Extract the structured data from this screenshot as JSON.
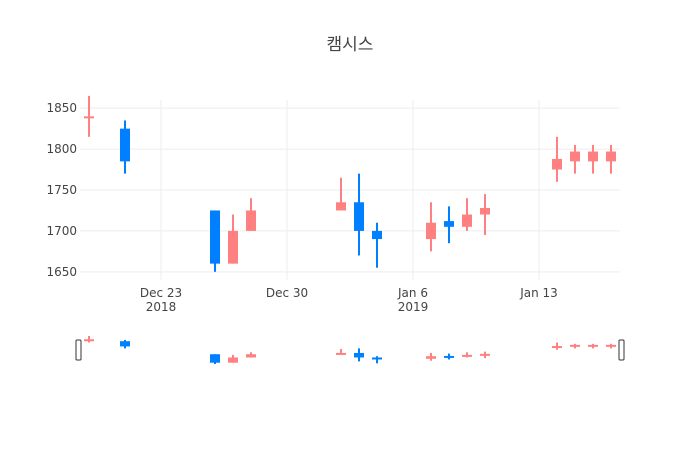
{
  "chart_data": {
    "type": "candlestick",
    "title": "캠시스",
    "xlabel": "",
    "ylabel": "",
    "ylim": [
      1640,
      1860
    ],
    "y_ticks": [
      1650,
      1700,
      1750,
      1800,
      1850
    ],
    "x_range": [
      "2018-12-19",
      "2019-01-17"
    ],
    "x_ticks": [
      {
        "date": "2018-12-23",
        "label": "Dec 23",
        "sublabel": "2018"
      },
      {
        "date": "2018-12-30",
        "label": "Dec 30",
        "sublabel": ""
      },
      {
        "date": "2019-01-06",
        "label": "Jan 6",
        "sublabel": "2019"
      },
      {
        "date": "2019-01-13",
        "label": "Jan 13",
        "sublabel": ""
      }
    ],
    "grid": true,
    "range_slider": true,
    "colors": {
      "increasing": "#ff8080",
      "decreasing": "#0080ff",
      "grid": "#eeeeee",
      "text": "#444444"
    },
    "candles": [
      {
        "date": "2018-12-19",
        "open": 1840,
        "high": 1865,
        "low": 1815,
        "close": 1840
      },
      {
        "date": "2018-12-21",
        "open": 1825,
        "high": 1835,
        "low": 1770,
        "close": 1785
      },
      {
        "date": "2018-12-26",
        "open": 1725,
        "high": 1725,
        "low": 1650,
        "close": 1660
      },
      {
        "date": "2018-12-27",
        "open": 1660,
        "high": 1720,
        "low": 1660,
        "close": 1700
      },
      {
        "date": "2018-12-28",
        "open": 1700,
        "high": 1740,
        "low": 1700,
        "close": 1725
      },
      {
        "date": "2019-01-02",
        "open": 1725,
        "high": 1765,
        "low": 1725,
        "close": 1735
      },
      {
        "date": "2019-01-03",
        "open": 1735,
        "high": 1770,
        "low": 1670,
        "close": 1700
      },
      {
        "date": "2019-01-04",
        "open": 1700,
        "high": 1710,
        "low": 1655,
        "close": 1690
      },
      {
        "date": "2019-01-07",
        "open": 1690,
        "high": 1735,
        "low": 1675,
        "close": 1710
      },
      {
        "date": "2019-01-08",
        "open": 1712,
        "high": 1730,
        "low": 1685,
        "close": 1705
      },
      {
        "date": "2019-01-09",
        "open": 1705,
        "high": 1740,
        "low": 1700,
        "close": 1720
      },
      {
        "date": "2019-01-10",
        "open": 1720,
        "high": 1745,
        "low": 1695,
        "close": 1728
      },
      {
        "date": "2019-01-14",
        "open": 1775,
        "high": 1815,
        "low": 1760,
        "close": 1788
      },
      {
        "date": "2019-01-15",
        "open": 1785,
        "high": 1805,
        "low": 1770,
        "close": 1797
      },
      {
        "date": "2019-01-16",
        "open": 1785,
        "high": 1805,
        "low": 1770,
        "close": 1797
      },
      {
        "date": "2019-01-17",
        "open": 1785,
        "high": 1805,
        "low": 1770,
        "close": 1797
      }
    ]
  }
}
